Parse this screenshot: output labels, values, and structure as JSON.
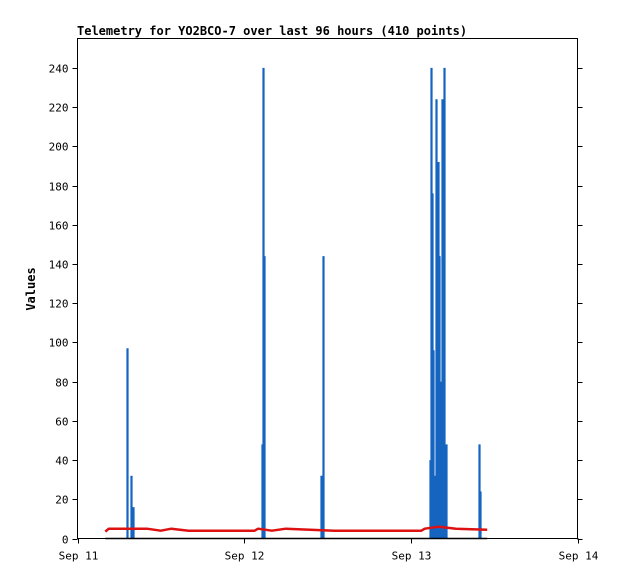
{
  "chart_data": {
    "type": "line",
    "title": "Telemetry for YO2BCO-7 over last 96 hours (410 points)",
    "xlabel": "",
    "ylabel": "Values",
    "x_ticks": [
      "Sep 11",
      "Sep 12",
      "Sep 13",
      "Sep 14"
    ],
    "y_ticks": [
      0,
      20,
      40,
      60,
      80,
      100,
      120,
      140,
      160,
      180,
      200,
      220,
      240
    ],
    "xlim": [
      "2025-09-11T00:00",
      "2025-09-14T00:00"
    ],
    "ylim": [
      0,
      255
    ],
    "grid": false,
    "series": [
      {
        "color": "#1565c0",
        "style": "spikes",
        "points": [
          [
            "2025-09-11T07:05",
            97
          ],
          [
            "2025-09-11T07:45",
            32
          ],
          [
            "2025-09-11T08:00",
            16
          ],
          [
            "2025-09-12T02:30",
            48
          ],
          [
            "2025-09-12T02:45",
            240
          ],
          [
            "2025-09-12T02:55",
            144
          ],
          [
            "2025-09-12T11:00",
            32
          ],
          [
            "2025-09-12T11:10",
            32
          ],
          [
            "2025-09-12T11:20",
            144
          ],
          [
            "2025-09-13T02:45",
            40
          ],
          [
            "2025-09-13T02:55",
            240
          ],
          [
            "2025-09-13T03:05",
            176
          ],
          [
            "2025-09-13T03:15",
            96
          ],
          [
            "2025-09-13T03:25",
            32
          ],
          [
            "2025-09-13T03:35",
            224
          ],
          [
            "2025-09-13T03:45",
            176
          ],
          [
            "2025-09-13T03:55",
            192
          ],
          [
            "2025-09-13T04:05",
            144
          ],
          [
            "2025-09-13T04:15",
            80
          ],
          [
            "2025-09-13T04:25",
            224
          ],
          [
            "2025-09-13T04:40",
            120
          ],
          [
            "2025-09-13T04:50",
            240
          ],
          [
            "2025-09-13T05:00",
            48
          ],
          [
            "2025-09-13T09:50",
            48
          ],
          [
            "2025-09-13T10:00",
            24
          ]
        ]
      },
      {
        "color": "#dd1111",
        "style": "line",
        "points": [
          [
            "2025-09-11T04:00",
            3.5
          ],
          [
            "2025-09-11T04:30",
            5
          ],
          [
            "2025-09-11T10:00",
            5
          ],
          [
            "2025-09-11T12:00",
            4
          ],
          [
            "2025-09-11T13:30",
            5
          ],
          [
            "2025-09-11T16:00",
            4
          ],
          [
            "2025-09-12T01:30",
            4
          ],
          [
            "2025-09-12T02:00",
            5
          ],
          [
            "2025-09-12T04:00",
            4
          ],
          [
            "2025-09-12T06:00",
            5
          ],
          [
            "2025-09-12T13:00",
            4
          ],
          [
            "2025-09-13T01:30",
            4
          ],
          [
            "2025-09-13T02:00",
            5
          ],
          [
            "2025-09-13T04:00",
            6
          ],
          [
            "2025-09-13T06:30",
            5
          ],
          [
            "2025-09-13T11:00",
            4.5
          ]
        ]
      },
      {
        "color": "#000000",
        "style": "line",
        "points": [
          [
            "2025-09-11T04:00",
            0
          ],
          [
            "2025-09-13T11:00",
            0
          ]
        ]
      }
    ]
  }
}
